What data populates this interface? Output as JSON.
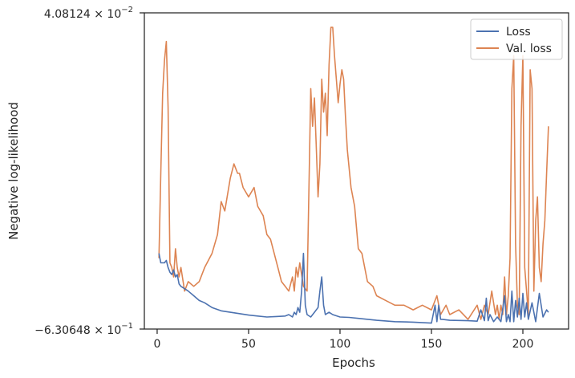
{
  "chart_data": {
    "type": "line",
    "title": "",
    "xlabel": "Epochs",
    "ylabel": "Negative log-likelihood",
    "xlim": [
      -7,
      225
    ],
    "ylim": [
      -0.630648,
      0.0408124
    ],
    "xticks": [
      0,
      50,
      100,
      150,
      200
    ],
    "xtick_labels": [
      "0",
      "50",
      "100",
      "150",
      "200"
    ],
    "ytick_labels": [
      {
        "base": "4.08124 × 10",
        "exp": "−2"
      },
      {
        "base": "−6.30648 × 10",
        "exp": "−1"
      }
    ],
    "grid": false,
    "legend_position": "top-right",
    "series": [
      {
        "name": "Loss",
        "color": "#4c72b0",
        "x": [
          1,
          2,
          3,
          4,
          5,
          6,
          7,
          8,
          9,
          10,
          11,
          12,
          13,
          15,
          17,
          20,
          23,
          26,
          30,
          35,
          40,
          45,
          50,
          55,
          60,
          65,
          70,
          72,
          74,
          75,
          76,
          77,
          78,
          79,
          80,
          81,
          82,
          84,
          86,
          88,
          89,
          90,
          91,
          92,
          94,
          96,
          100,
          105,
          110,
          120,
          130,
          140,
          150,
          152,
          153,
          154,
          155,
          156,
          160,
          170,
          175,
          177,
          179,
          180,
          181,
          182,
          184,
          186,
          188,
          190,
          191,
          192,
          193,
          194,
          195,
          196,
          197,
          198,
          199,
          200,
          201,
          202,
          203,
          205,
          207,
          209,
          211,
          213,
          214
        ],
        "y": [
          -0.47,
          -0.49,
          -0.49,
          -0.49,
          -0.485,
          -0.5,
          -0.51,
          -0.515,
          -0.505,
          -0.52,
          -0.515,
          -0.535,
          -0.54,
          -0.545,
          -0.55,
          -0.56,
          -0.57,
          -0.575,
          -0.585,
          -0.592,
          -0.595,
          -0.598,
          -0.601,
          -0.603,
          -0.605,
          -0.604,
          -0.603,
          -0.6,
          -0.605,
          -0.595,
          -0.6,
          -0.585,
          -0.595,
          -0.55,
          -0.47,
          -0.58,
          -0.6,
          -0.605,
          -0.595,
          -0.585,
          -0.55,
          -0.52,
          -0.58,
          -0.6,
          -0.595,
          -0.6,
          -0.605,
          -0.606,
          -0.608,
          -0.612,
          -0.615,
          -0.616,
          -0.618,
          -0.58,
          -0.615,
          -0.58,
          -0.61,
          -0.61,
          -0.612,
          -0.613,
          -0.614,
          -0.59,
          -0.613,
          -0.565,
          -0.613,
          -0.6,
          -0.615,
          -0.605,
          -0.615,
          -0.56,
          -0.615,
          -0.6,
          -0.615,
          -0.55,
          -0.615,
          -0.57,
          -0.605,
          -0.565,
          -0.61,
          -0.555,
          -0.605,
          -0.575,
          -0.61,
          -0.575,
          -0.615,
          -0.555,
          -0.605,
          -0.59,
          -0.595
        ]
      },
      {
        "name": "Val. loss",
        "color": "#dd8452",
        "x": [
          1,
          2,
          3,
          4,
          5,
          6,
          7,
          8,
          9,
          10,
          11,
          12,
          13,
          15,
          17,
          20,
          23,
          26,
          30,
          33,
          35,
          37,
          40,
          42,
          44,
          45,
          47,
          50,
          53,
          55,
          58,
          60,
          62,
          64,
          66,
          68,
          70,
          72,
          74,
          75,
          76,
          77,
          78,
          80,
          82,
          84,
          85,
          86,
          87,
          88,
          89,
          90,
          91,
          92,
          93,
          94,
          95,
          96,
          97,
          98,
          99,
          100,
          101,
          102,
          103,
          104,
          106,
          108,
          110,
          112,
          115,
          118,
          120,
          125,
          130,
          135,
          140,
          145,
          150,
          153,
          155,
          158,
          160,
          165,
          170,
          175,
          177,
          179,
          181,
          183,
          185,
          186,
          187,
          188,
          189,
          190,
          191,
          192,
          193,
          194,
          195,
          196,
          197,
          198,
          199,
          200,
          201,
          202,
          203,
          204,
          205,
          206,
          207,
          208,
          209,
          210,
          211,
          212,
          213,
          214
        ],
        "y": [
          -0.48,
          -0.3,
          -0.13,
          -0.06,
          -0.02,
          -0.16,
          -0.49,
          -0.5,
          -0.52,
          -0.46,
          -0.5,
          -0.52,
          -0.5,
          -0.55,
          -0.53,
          -0.54,
          -0.53,
          -0.5,
          -0.47,
          -0.43,
          -0.36,
          -0.38,
          -0.31,
          -0.28,
          -0.3,
          -0.3,
          -0.33,
          -0.35,
          -0.33,
          -0.37,
          -0.39,
          -0.43,
          -0.44,
          -0.47,
          -0.5,
          -0.53,
          -0.54,
          -0.55,
          -0.52,
          -0.55,
          -0.5,
          -0.52,
          -0.49,
          -0.54,
          -0.55,
          -0.12,
          -0.2,
          -0.14,
          -0.24,
          -0.35,
          -0.28,
          -0.1,
          -0.17,
          -0.13,
          -0.22,
          -0.07,
          0.01,
          0.01,
          -0.05,
          -0.1,
          -0.15,
          -0.11,
          -0.08,
          -0.1,
          -0.18,
          -0.25,
          -0.33,
          -0.37,
          -0.46,
          -0.47,
          -0.53,
          -0.54,
          -0.56,
          -0.57,
          -0.58,
          -0.58,
          -0.59,
          -0.58,
          -0.59,
          -0.56,
          -0.6,
          -0.58,
          -0.6,
          -0.59,
          -0.61,
          -0.58,
          -0.61,
          -0.58,
          -0.6,
          -0.55,
          -0.6,
          -0.58,
          -0.61,
          -0.58,
          -0.6,
          -0.52,
          -0.6,
          -0.56,
          -0.48,
          -0.12,
          -0.05,
          -0.45,
          -0.58,
          -0.6,
          -0.2,
          -0.05,
          -0.5,
          -0.55,
          -0.6,
          -0.08,
          -0.12,
          -0.55,
          -0.4,
          -0.35,
          -0.5,
          -0.53,
          -0.45,
          -0.4,
          -0.3,
          -0.2
        ],
        "__note": ""
      }
    ]
  }
}
